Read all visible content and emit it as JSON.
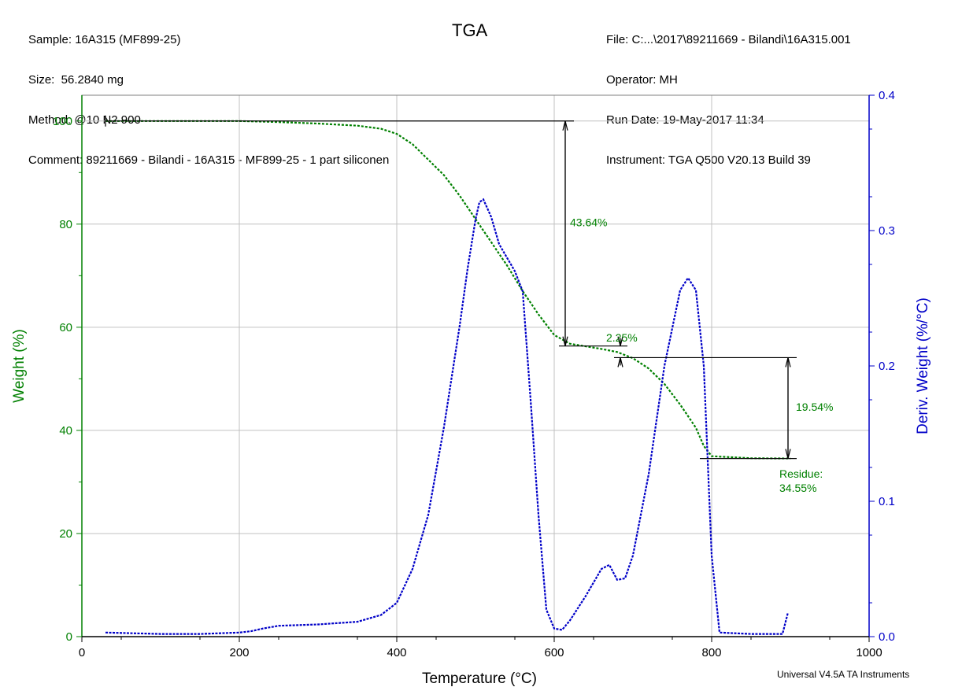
{
  "header": {
    "left": [
      "Sample: 16A315 (MF899-25)",
      "Size:  56.2840 mg",
      "Method: @10 N2 900",
      "Comment: 89211669 - Bilandi - 16A315 - MF899-25 - 1 part siliconen"
    ],
    "right": [
      "File: C:...\\2017\\89211669 - Bilandi\\16A315.001",
      "Operator: MH",
      "Run Date: 19-May-2017 11:34",
      "Instrument: TGA Q500 V20.13 Build 39"
    ]
  },
  "footer": "Universal V4.5A TA Instruments",
  "colors": {
    "weight": "#008000",
    "deriv": "#0000c8",
    "grid": "#c0c0c0",
    "annot": "#000000"
  },
  "chart_data": {
    "type": "line",
    "title": "TGA",
    "xlabel": "Temperature (°C)",
    "ylabel": "Weight (%)",
    "y2label": "Deriv. Weight (%/°C)",
    "xlim": [
      0,
      1000
    ],
    "ylim": [
      0,
      105
    ],
    "y2lim": [
      0,
      0.4
    ],
    "xticks": [
      "0",
      "200",
      "400",
      "600",
      "800",
      "1000"
    ],
    "yticks": [
      "0",
      "20",
      "40",
      "60",
      "80",
      "100"
    ],
    "y2ticks": [
      "0.0",
      "0.1",
      "0.2",
      "0.3",
      "0.4"
    ],
    "grid": true,
    "series": [
      {
        "axis": "left",
        "x": [
          30,
          100,
          200,
          250,
          300,
          350,
          380,
          400,
          420,
          440,
          460,
          480,
          500,
          520,
          540,
          560,
          580,
          600,
          620,
          640,
          660,
          680,
          700,
          720,
          740,
          760,
          780,
          790,
          800,
          850,
          900
        ],
        "y": [
          100,
          100,
          100,
          99.8,
          99.5,
          99.1,
          98.5,
          97.5,
          95.5,
          92.5,
          89.5,
          85.5,
          81,
          76.5,
          72,
          67,
          62.5,
          58.5,
          56.8,
          56.3,
          55.8,
          55.2,
          54,
          52,
          49,
          45,
          40.5,
          37,
          35,
          34.6,
          34.55
        ]
      },
      {
        "axis": "right",
        "x": [
          30,
          100,
          150,
          200,
          215,
          230,
          250,
          300,
          350,
          380,
          400,
          420,
          440,
          460,
          480,
          490,
          500,
          505,
          510,
          520,
          530,
          540,
          550,
          560,
          570,
          580,
          590,
          600,
          610,
          620,
          640,
          660,
          670,
          680,
          690,
          700,
          720,
          740,
          760,
          770,
          780,
          790,
          800,
          810,
          850,
          890,
          897
        ],
        "y": [
          0.003,
          0.002,
          0.002,
          0.003,
          0.004,
          0.006,
          0.008,
          0.009,
          0.011,
          0.016,
          0.025,
          0.05,
          0.09,
          0.155,
          0.23,
          0.272,
          0.308,
          0.321,
          0.323,
          0.31,
          0.29,
          0.28,
          0.27,
          0.255,
          0.175,
          0.09,
          0.02,
          0.006,
          0.005,
          0.012,
          0.03,
          0.05,
          0.053,
          0.042,
          0.043,
          0.06,
          0.12,
          0.2,
          0.256,
          0.265,
          0.256,
          0.2,
          0.06,
          0.003,
          0.002,
          0.002,
          0.018
        ]
      }
    ],
    "annotations": [
      {
        "text": "43.64%"
      },
      {
        "text": "2.25%"
      },
      {
        "text": "19.54%"
      },
      {
        "text": "Residue:"
      },
      {
        "text": "34.55%"
      }
    ]
  }
}
